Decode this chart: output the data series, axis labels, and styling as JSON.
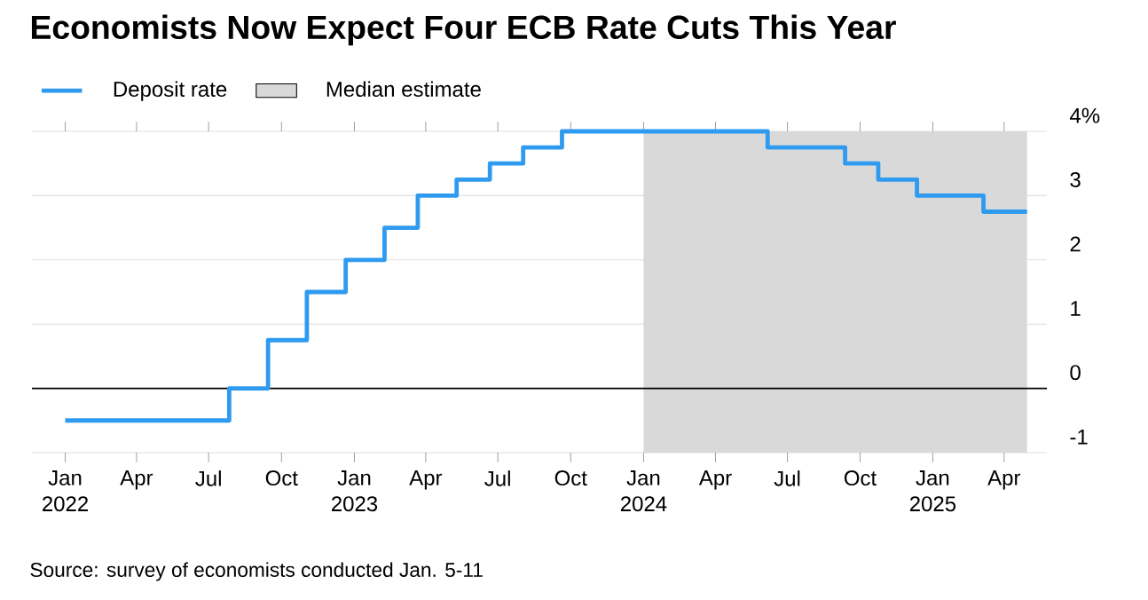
{
  "chart_data": {
    "type": "step",
    "title": "Economists Now Expect Four ECB Rate Cuts This Year",
    "annotations": [
      "Source: survey of economists conducted Jan. 5-11"
    ],
    "x": [
      "2022-01-01",
      "2022-07-27",
      "2022-09-14",
      "2022-11-02",
      "2022-12-21",
      "2023-02-08",
      "2023-03-22",
      "2023-05-10",
      "2023-06-21",
      "2023-08-02",
      "2023-09-20",
      "2024-06-06",
      "2024-09-12",
      "2024-10-24",
      "2024-12-12",
      "2025-03-06",
      "2025-04-30"
    ],
    "series": [
      {
        "name": "Deposit rate",
        "color": "#2f9bf0",
        "values": [
          -0.5,
          0,
          0.75,
          1.5,
          2,
          2.5,
          3,
          3.25,
          3.5,
          3.75,
          4,
          3.75,
          3.5,
          3.25,
          3,
          2.75,
          2.75
        ]
      }
    ],
    "xlim": [
      "2021-11-20",
      "2025-05-25"
    ],
    "xticks": [
      {
        "value": "2022-01-01",
        "label": "Jan 2022"
      },
      {
        "value": "2022-04-01",
        "label": "Apr"
      },
      {
        "value": "2022-07-01",
        "label": "Jul"
      },
      {
        "value": "2022-10-01",
        "label": "Oct"
      },
      {
        "value": "2023-01-01",
        "label": "Jan 2023"
      },
      {
        "value": "2023-04-01",
        "label": "Apr"
      },
      {
        "value": "2023-07-01",
        "label": "Jul"
      },
      {
        "value": "2023-10-01",
        "label": "Oct"
      },
      {
        "value": "2024-01-01",
        "label": "Jan 2024"
      },
      {
        "value": "2024-04-01",
        "label": "Apr"
      },
      {
        "value": "2024-07-01",
        "label": "Jul"
      },
      {
        "value": "2024-10-01",
        "label": "Oct"
      },
      {
        "value": "2025-01-01",
        "label": "Jan 2025"
      },
      {
        "value": "2025-04-01",
        "label": "Apr"
      }
    ],
    "ylim": [
      -1,
      4
    ],
    "yticks": [
      {
        "value": 4,
        "label": "4%"
      },
      3,
      2,
      1,
      0,
      -1
    ],
    "bands": [
      {
        "axis": "x",
        "from": "2024-01-01",
        "to": "2025-04-30",
        "label": "Median estimate",
        "color": "#d9d9d9"
      }
    ],
    "ref_lines": [
      {
        "axis": "y",
        "value": 0,
        "color": "#000000"
      }
    ],
    "grid": "y",
    "legend": "top left"
  }
}
